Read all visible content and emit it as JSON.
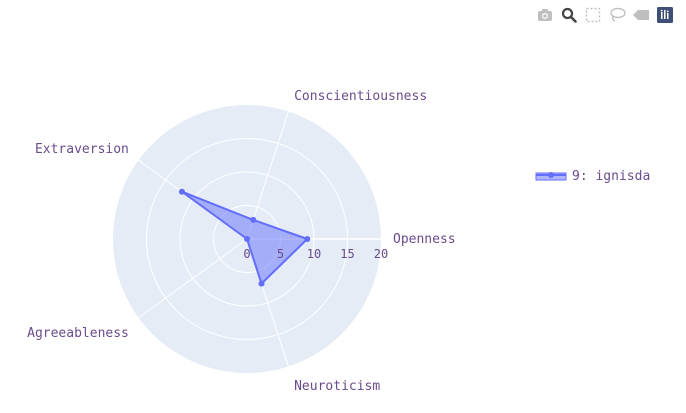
{
  "modebar": {
    "buttons": [
      {
        "name": "camera-icon",
        "active": false
      },
      {
        "name": "zoom-icon",
        "active": true
      },
      {
        "name": "box-select-icon",
        "active": false
      },
      {
        "name": "lasso-select-icon",
        "active": false
      },
      {
        "name": "hover-closest-icon",
        "active": false
      },
      {
        "name": "plotly-logo-icon",
        "active": true
      }
    ]
  },
  "colors": {
    "polar_bg": "#e5ecf6",
    "grid": "#ffffff",
    "series_line": "#636efa",
    "series_fill": "rgba(99,110,250,0.5)",
    "text": "#6a4c8c",
    "modebar_inactive": "#bfbfbf",
    "modebar_active": "#444444",
    "logo": "#3f4f75"
  },
  "chart_data": {
    "type": "radar",
    "axes": [
      "Openness",
      "Conscientiousness",
      "Extraversion",
      "Agreeableness",
      "Neuroticism"
    ],
    "radial_ticks": [
      "0",
      "5",
      "10",
      "15",
      "20"
    ],
    "radial_range": [
      0,
      20
    ],
    "legend_position": "right",
    "series": [
      {
        "name": "9: ignisda",
        "values": [
          9,
          3,
          12,
          0,
          7
        ]
      }
    ]
  }
}
